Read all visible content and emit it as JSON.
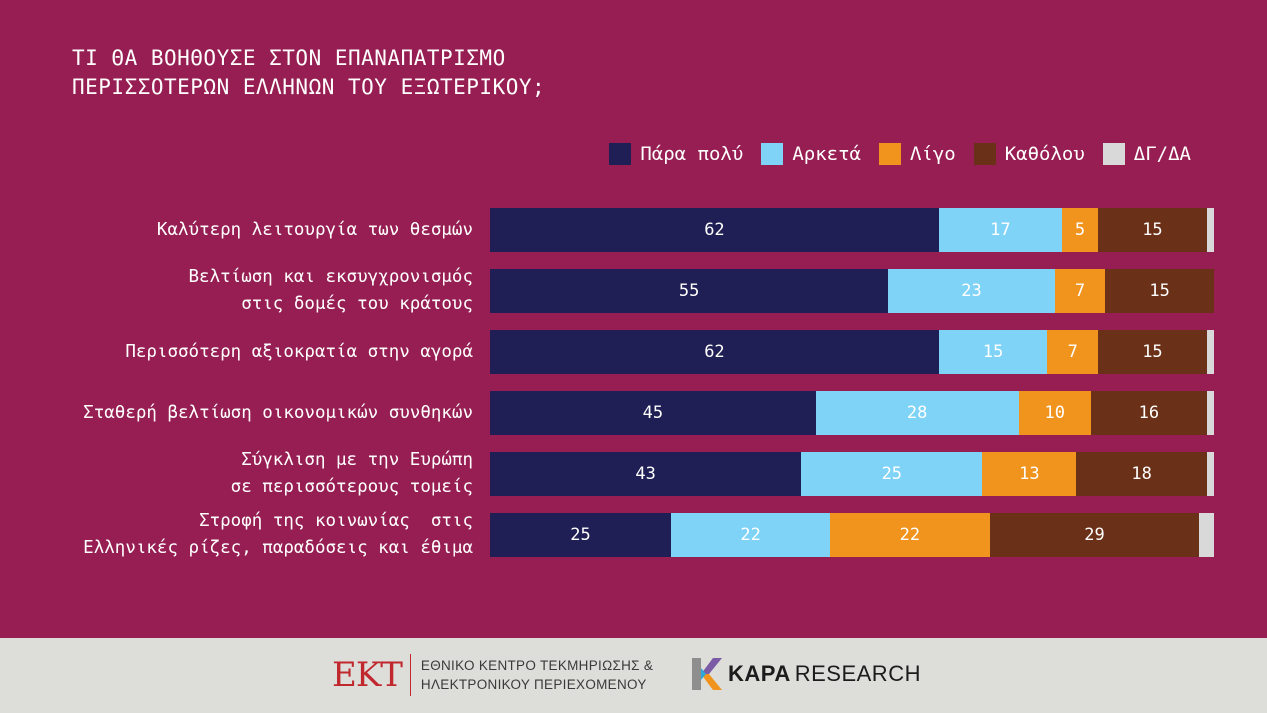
{
  "header": {
    "title_lines": [
      "ΤΙ ΘΑ ΒΟΗΘΟΥΣΕ ΣΤΟΝ ΕΠΑΝΑΠΑΤΡΙΣΜΟ",
      "ΠΕΡΙΣΣΟΤΕΡΩΝ ΕΛΛΗΝΩΝ ΤΟΥ ΕΞΩΤΕΡΙΚΟΥ;"
    ]
  },
  "colors": {
    "background": "#961E52",
    "series": [
      "#1F1F55",
      "#7FD3F7",
      "#F0941E",
      "#6B3118",
      "#D9D9D9"
    ],
    "label_text": [
      "#ffffff",
      "#ffffff",
      "#ffffff",
      "#ffffff",
      "#333333"
    ]
  },
  "chart_data": {
    "type": "bar",
    "orientation": "horizontal",
    "stacked": true,
    "title": "ΤΙ ΘΑ ΒΟΗΘΟΥΣΕ ΣΤΟΝ ΕΠΑΝΑΠΑΤΡΙΣΜΟ ΠΕΡΙΣΣΟΤΕΡΩΝ ΕΛΛΗΝΩΝ ΤΟΥ ΕΞΩΤΕΡΙΚΟΥ;",
    "legend_position": "top-right",
    "xlim": [
      0,
      100
    ],
    "categories": [
      [
        "Καλύτερη λειτουργία των θεσμών"
      ],
      [
        "Βελτίωση και εκσυγχρονισμός",
        "στις δομές του κράτους"
      ],
      [
        "Περισσότερη αξιοκρατία στην αγορά"
      ],
      [
        "Σταθερή βελτίωση οικονομικών συνθηκών"
      ],
      [
        "Σύγκλιση με την Ευρώπη",
        "σε περισσότερους τομείς"
      ],
      [
        "Στροφή της κοινωνίας  στις",
        "Ελληνικές ρίζες, παραδόσεις και έθιμα"
      ]
    ],
    "series": [
      {
        "name": "Πάρα πολύ",
        "values": [
          62,
          55,
          62,
          45,
          43,
          25
        ]
      },
      {
        "name": "Αρκετά",
        "values": [
          17,
          23,
          15,
          28,
          25,
          22
        ]
      },
      {
        "name": "Λίγο",
        "values": [
          5,
          7,
          7,
          10,
          13,
          22
        ]
      },
      {
        "name": "Καθόλου",
        "values": [
          15,
          15,
          15,
          16,
          18,
          29
        ]
      },
      {
        "name": "ΔΓ/ΔΑ",
        "values": [
          1,
          0,
          1,
          1,
          1,
          2
        ]
      }
    ],
    "shown_labels": [
      [
        "62",
        "17",
        "5",
        "15",
        ""
      ],
      [
        "55",
        "23",
        "7",
        "15",
        ""
      ],
      [
        "62",
        "15",
        "7",
        "15",
        ""
      ],
      [
        "45",
        "28",
        "10",
        "16",
        ""
      ],
      [
        "43",
        "25",
        "13",
        "18",
        ""
      ],
      [
        "25",
        "22",
        "22",
        "29",
        ""
      ]
    ]
  },
  "footer": {
    "ekt_mark": "ΕΚΤ",
    "ekt_line1": "ΕΘΝΙΚΟ ΚΕΝΤΡΟ ΤΕΚΜΗΡΙΩΣΗΣ &",
    "ekt_line2": "ΗΛΕΚΤΡΟΝΙΚΟΥ ΠΕΡΙΕΧΟΜΕΝΟΥ",
    "kapa_bold": "KAPA",
    "kapa_light": "RESEARCH"
  }
}
